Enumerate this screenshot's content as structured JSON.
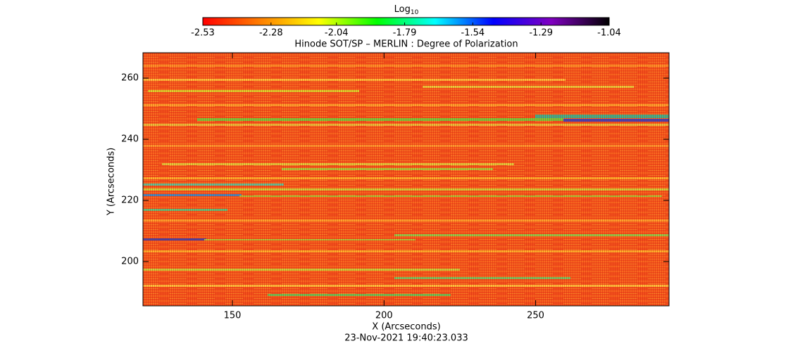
{
  "chart_data": {
    "type": "heatmap",
    "title": "Hinode SOT/SP – MERLIN : Degree of Polarization",
    "xlabel": "X (Arcseconds)",
    "ylabel": "Y (Arcseconds)",
    "footer": "23-Nov-2021 19:40:23.033",
    "xlim": [
      120.5,
      294
    ],
    "xticks": [
      150,
      200,
      250
    ],
    "ylim": [
      185.5,
      268.3
    ],
    "yticks": [
      200,
      220,
      240,
      260
    ],
    "colorbar_title": "Log",
    "colorbar_title_subscript": "10",
    "clim": [
      -2.53,
      -1.04
    ],
    "colorbar_ticks": [
      -2.53,
      -2.28,
      -2.04,
      -1.79,
      -1.54,
      -1.29,
      -1.04
    ],
    "colormap": [
      "#ff0000",
      "#ff8000",
      "#ffff00",
      "#00ff00",
      "#00ffff",
      "#0000ff",
      "#8000c0",
      "#000000"
    ]
  }
}
